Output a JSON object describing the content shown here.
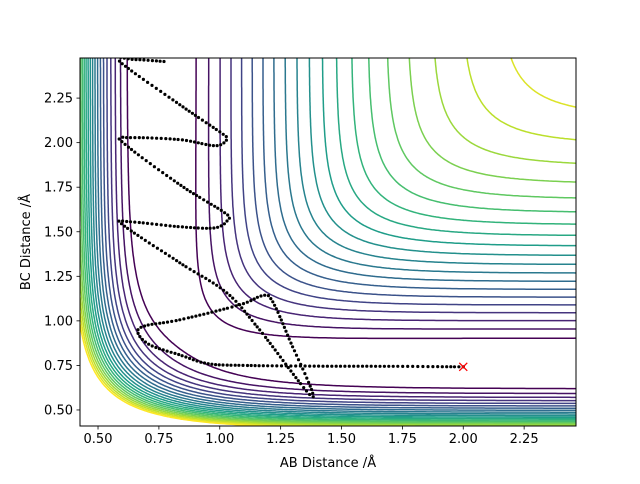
{
  "chart_data": {
    "type": "contour",
    "title": "",
    "xlabel": "AB Distance /Å",
    "ylabel": "BC Distance /Å",
    "xlim": [
      0.426,
      2.463
    ],
    "ylim": [
      0.41,
      2.475
    ],
    "xticks": [
      0.5,
      0.75,
      1.0,
      1.25,
      1.5,
      1.75,
      2.0,
      2.25
    ],
    "xtick_labels": [
      "0.50",
      "0.75",
      "1.00",
      "1.25",
      "1.50",
      "1.75",
      "2.00",
      "2.25"
    ],
    "yticks": [
      0.5,
      0.75,
      1.0,
      1.25,
      1.5,
      1.75,
      2.0,
      2.25
    ],
    "ytick_labels": [
      "0.50",
      "0.75",
      "1.00",
      "1.25",
      "1.50",
      "1.75",
      "2.00",
      "2.25"
    ],
    "grid": false,
    "colormap": "viridis",
    "contour_levels": {
      "start": -4.4,
      "stop": -0.4,
      "step": 0.2
    },
    "trajectory": {
      "color": "#000000",
      "marker": "dot",
      "points": [
        [
          2.0,
          0.742
        ],
        [
          1.7,
          0.745
        ],
        [
          1.4,
          0.746
        ],
        [
          1.1,
          0.75
        ],
        [
          0.95,
          0.76
        ],
        [
          0.836,
          0.809
        ],
        [
          0.713,
          0.865
        ],
        [
          0.664,
          0.933
        ],
        [
          0.693,
          0.972
        ],
        [
          0.836,
          1.006
        ],
        [
          1.082,
          1.09
        ],
        [
          1.172,
          1.14
        ],
        [
          1.213,
          1.118
        ],
        [
          1.287,
          0.893
        ],
        [
          1.381,
          0.573
        ],
        [
          1.164,
          0.949
        ],
        [
          1.029,
          1.157
        ],
        [
          0.836,
          1.326
        ],
        [
          0.602,
          1.539
        ],
        [
          0.631,
          1.556
        ],
        [
          0.836,
          1.528
        ],
        [
          0.98,
          1.522
        ],
        [
          1.033,
          1.567
        ],
        [
          1.02,
          1.607
        ],
        [
          0.836,
          1.764
        ],
        [
          0.598,
          2.006
        ],
        [
          0.631,
          2.028
        ],
        [
          0.836,
          2.017
        ],
        [
          0.98,
          1.983
        ],
        [
          1.029,
          2.017
        ],
        [
          1.016,
          2.045
        ],
        [
          0.836,
          2.213
        ],
        [
          0.59,
          2.455
        ],
        [
          0.652,
          2.466
        ],
        [
          0.775,
          2.455
        ]
      ]
    },
    "start_marker": {
      "x": 2.0,
      "y": 0.742,
      "symbol": "x",
      "color": "#ff0000"
    }
  }
}
